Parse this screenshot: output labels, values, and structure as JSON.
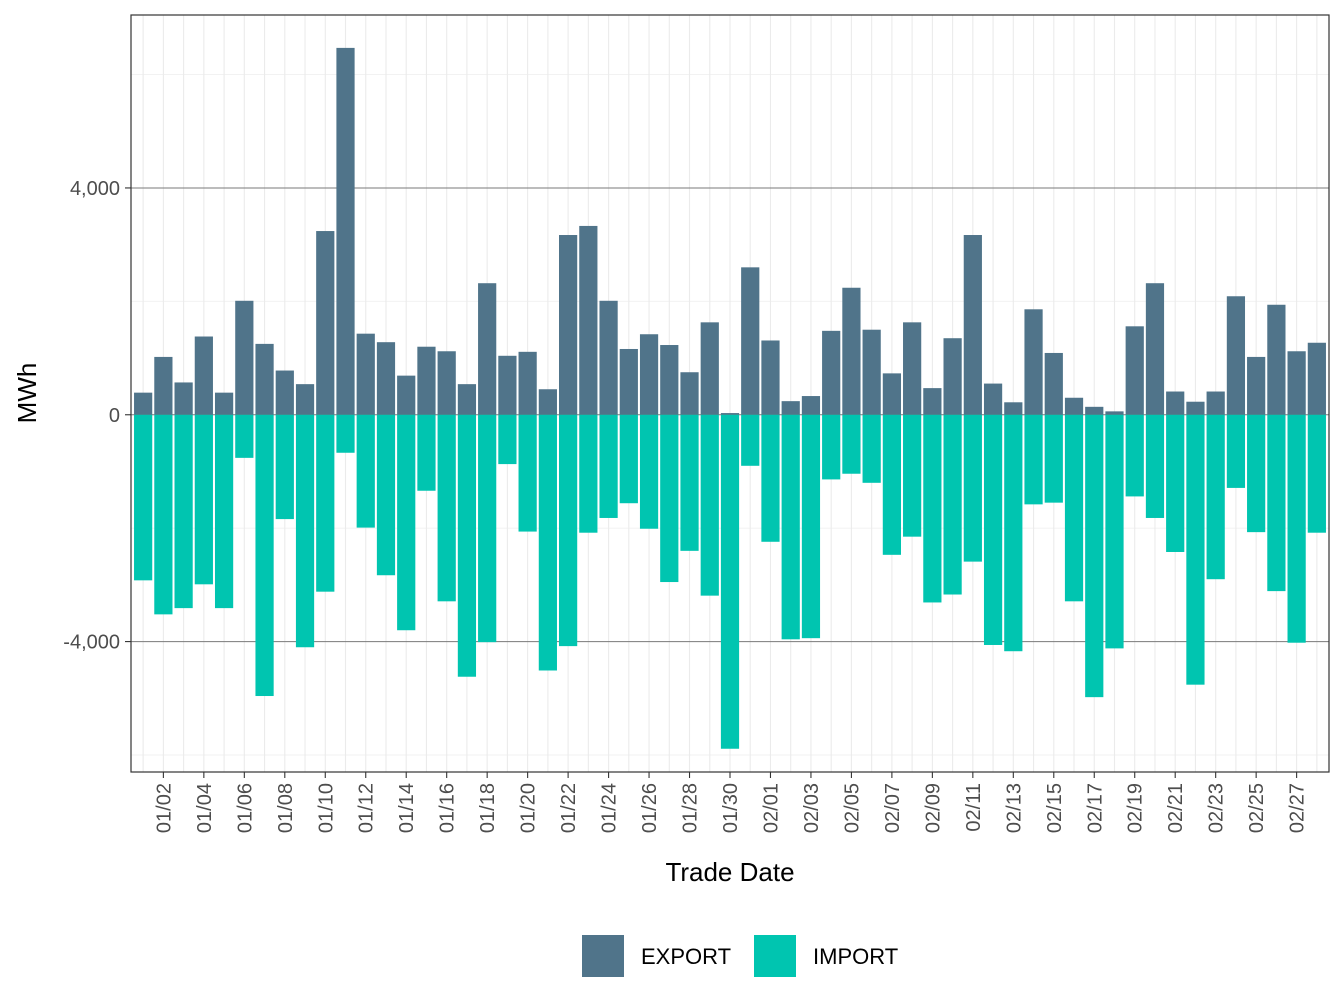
{
  "chart_data": {
    "type": "bar",
    "stacking": "diverging",
    "xlabel": "Trade Date",
    "ylabel": "MWh",
    "ylim": [
      -6300,
      7050
    ],
    "yticks": [
      -4000,
      0,
      4000
    ],
    "ytick_labels": [
      "-4,000",
      "0",
      "4,000"
    ],
    "grid": true,
    "legend_position": "bottom",
    "categories": [
      "01/01",
      "01/02",
      "01/03",
      "01/04",
      "01/05",
      "01/06",
      "01/07",
      "01/08",
      "01/09",
      "01/10",
      "01/11",
      "01/12",
      "01/13",
      "01/14",
      "01/15",
      "01/16",
      "01/17",
      "01/18",
      "01/19",
      "01/20",
      "01/21",
      "01/22",
      "01/23",
      "01/24",
      "01/25",
      "01/26",
      "01/27",
      "01/28",
      "01/29",
      "01/30",
      "01/31",
      "02/01",
      "02/02",
      "02/03",
      "02/04",
      "02/05",
      "02/06",
      "02/07",
      "02/08",
      "02/09",
      "02/10",
      "02/11",
      "02/12",
      "02/13",
      "02/14",
      "02/15",
      "02/16",
      "02/17",
      "02/18",
      "02/19",
      "02/20",
      "02/21",
      "02/22",
      "02/23",
      "02/24",
      "02/25",
      "02/26",
      "02/27",
      "02/28"
    ],
    "tick_labels": [
      "01/02",
      "01/04",
      "01/06",
      "01/08",
      "01/10",
      "01/12",
      "01/14",
      "01/16",
      "01/18",
      "01/20",
      "01/22",
      "01/24",
      "01/26",
      "01/28",
      "01/30",
      "02/01",
      "02/03",
      "02/05",
      "02/07",
      "02/09",
      "02/11",
      "02/13",
      "02/15",
      "02/17",
      "02/19",
      "02/21",
      "02/23",
      "02/25",
      "02/27"
    ],
    "series": [
      {
        "name": "EXPORT",
        "color": "#50748a",
        "values": [
          390,
          1020,
          570,
          1380,
          390,
          2010,
          1250,
          780,
          540,
          3240,
          6470,
          1430,
          1280,
          690,
          1200,
          1120,
          540,
          2320,
          1040,
          1110,
          450,
          3170,
          3330,
          2010,
          1160,
          1420,
          1230,
          750,
          1630,
          30,
          2600,
          1310,
          240,
          330,
          1480,
          2240,
          1500,
          730,
          1630,
          470,
          1350,
          3170,
          550,
          220,
          1860,
          1090,
          300,
          140,
          60,
          1560,
          2320,
          410,
          230,
          410,
          2090,
          1020,
          1940,
          1120,
          1270
        ]
      },
      {
        "name": "IMPORT",
        "color": "#00c5b0",
        "values": [
          -2920,
          -3520,
          -3410,
          -2990,
          -3410,
          -760,
          -4960,
          -1840,
          -4100,
          -3120,
          -670,
          -1990,
          -2830,
          -3800,
          -1340,
          -3290,
          -4620,
          -4010,
          -870,
          -2060,
          -4510,
          -4080,
          -2080,
          -1820,
          -1560,
          -2010,
          -2950,
          -2400,
          -3190,
          -5890,
          -900,
          -2240,
          -3960,
          -3940,
          -1140,
          -1040,
          -1200,
          -2470,
          -2150,
          -3310,
          -3170,
          -2590,
          -4060,
          -4170,
          -1580,
          -1550,
          -3290,
          -4980,
          -4120,
          -1440,
          -1820,
          -2420,
          -4760,
          -2900,
          -1290,
          -2070,
          -3110,
          -4020,
          -2080
        ]
      }
    ]
  }
}
